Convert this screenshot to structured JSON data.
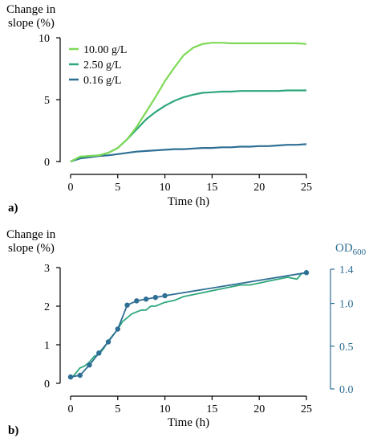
{
  "chart_data": [
    {
      "type": "line",
      "panel_label": "a)",
      "ylabel": [
        "Change in",
        "slope (%)"
      ],
      "xlabel": "Time (h)",
      "xlim": [
        0,
        25
      ],
      "ylim": [
        0,
        10
      ],
      "xticks": [
        0,
        5,
        10,
        15,
        20,
        25
      ],
      "yticks": [
        0,
        5,
        10
      ],
      "grid": false,
      "legend_position": "top-left",
      "series": [
        {
          "name": "10.00 g/L",
          "color": "#7ed957",
          "x": [
            0,
            1,
            2,
            3,
            4,
            5,
            6,
            7,
            8,
            9,
            10,
            11,
            12,
            13,
            14,
            15,
            16,
            17,
            18,
            19,
            20,
            21,
            22,
            23,
            24,
            25
          ],
          "y": [
            0,
            0.4,
            0.45,
            0.5,
            0.7,
            1.1,
            1.8,
            2.8,
            4.0,
            5.2,
            6.5,
            7.6,
            8.6,
            9.2,
            9.5,
            9.6,
            9.6,
            9.55,
            9.55,
            9.55,
            9.55,
            9.55,
            9.55,
            9.55,
            9.55,
            9.5
          ]
        },
        {
          "name": "2.50 g/L",
          "color": "#2ea77a",
          "x": [
            0,
            1,
            2,
            3,
            4,
            5,
            6,
            7,
            8,
            9,
            10,
            11,
            12,
            13,
            14,
            15,
            16,
            17,
            18,
            19,
            20,
            21,
            22,
            23,
            24,
            25
          ],
          "y": [
            0,
            0.35,
            0.45,
            0.5,
            0.7,
            1.1,
            1.8,
            2.6,
            3.4,
            4.0,
            4.5,
            4.9,
            5.2,
            5.4,
            5.55,
            5.6,
            5.65,
            5.65,
            5.7,
            5.7,
            5.7,
            5.7,
            5.7,
            5.75,
            5.75,
            5.75
          ]
        },
        {
          "name": "0.16 g/L",
          "color": "#2e6f95",
          "x": [
            0,
            1,
            2,
            3,
            4,
            5,
            6,
            7,
            8,
            9,
            10,
            11,
            12,
            13,
            14,
            15,
            16,
            17,
            18,
            19,
            20,
            21,
            22,
            23,
            24,
            25
          ],
          "y": [
            0,
            0.25,
            0.35,
            0.45,
            0.5,
            0.6,
            0.7,
            0.8,
            0.85,
            0.9,
            0.95,
            1.0,
            1.0,
            1.05,
            1.1,
            1.1,
            1.15,
            1.15,
            1.2,
            1.2,
            1.25,
            1.25,
            1.3,
            1.35,
            1.35,
            1.4
          ]
        }
      ]
    },
    {
      "type": "line",
      "panel_label": "b)",
      "ylabel": [
        "Change in",
        "slope (%)"
      ],
      "ylabel_right": "OD",
      "ylabel_right_sub": "600",
      "xlabel": "Time (h)",
      "xlim": [
        0,
        25
      ],
      "ylim": [
        0,
        3
      ],
      "ylim_right": [
        0,
        1.4
      ],
      "xticks": [
        0,
        5,
        10,
        15,
        20,
        25
      ],
      "yticks": [
        0,
        1,
        2,
        3
      ],
      "yticks_right": [
        "0.0",
        "0.5",
        "1.0",
        "1.4"
      ],
      "grid": false,
      "series": [
        {
          "name": "",
          "color": "#2ea77a",
          "axis": "left",
          "x": [
            0,
            0.5,
            1,
            1.5,
            2,
            2.5,
            3,
            3.5,
            4,
            4.5,
            5,
            5.5,
            6,
            6.5,
            7,
            7.5,
            8,
            8.5,
            9,
            9.5,
            10,
            11,
            12,
            13,
            14,
            15,
            16,
            17,
            18,
            19,
            20,
            21,
            22,
            23,
            24,
            24.5,
            25
          ],
          "y": [
            0.1,
            0.25,
            0.4,
            0.45,
            0.55,
            0.7,
            0.75,
            0.9,
            1.1,
            1.25,
            1.4,
            1.6,
            1.7,
            1.8,
            1.85,
            1.9,
            1.9,
            2.0,
            2.0,
            2.05,
            2.1,
            2.15,
            2.25,
            2.3,
            2.35,
            2.4,
            2.45,
            2.5,
            2.55,
            2.55,
            2.6,
            2.65,
            2.7,
            2.75,
            2.7,
            2.85,
            2.85
          ]
        },
        {
          "name": "",
          "color": "#2e6f95",
          "axis": "right",
          "x": [
            0,
            1,
            2,
            3,
            4,
            5,
            6,
            7,
            8,
            9,
            10,
            25
          ],
          "y": [
            0.14,
            0.16,
            0.28,
            0.42,
            0.55,
            0.7,
            0.98,
            1.03,
            1.05,
            1.07,
            1.09,
            1.36
          ]
        }
      ]
    }
  ]
}
